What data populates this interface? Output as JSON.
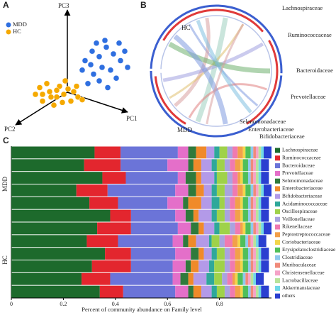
{
  "figure": {
    "panels": [
      "A",
      "B",
      "C"
    ]
  },
  "chart_data": [
    {
      "type": "scatter",
      "x_label": "PC1",
      "y_label": "PC3",
      "z_label": "PC2",
      "xlim": [
        0,
        100
      ],
      "ylim": [
        0,
        100
      ],
      "series": [
        {
          "name": "MDD",
          "color": "#2f6fe0",
          "x": [
            60,
            65,
            70,
            75,
            80,
            85,
            72,
            66,
            78,
            88,
            62,
            70,
            82,
            74,
            68,
            90,
            58,
            76,
            84,
            64
          ],
          "y": [
            55,
            62,
            58,
            65,
            60,
            55,
            50,
            45,
            48,
            62,
            38,
            40,
            42,
            70,
            68,
            50,
            48,
            35,
            68,
            52
          ]
        },
        {
          "name": "HC",
          "color": "#f5a900",
          "x": [
            25,
            30,
            35,
            40,
            45,
            50,
            55,
            33,
            42,
            48,
            28,
            38,
            52,
            58,
            36,
            44,
            30,
            46,
            40,
            54
          ],
          "y": [
            30,
            25,
            32,
            28,
            30,
            25,
            28,
            38,
            36,
            34,
            35,
            22,
            32,
            26,
            28,
            24,
            30,
            40,
            33,
            36
          ]
        }
      ]
    },
    {
      "type": "chord",
      "groups": [
        "HC",
        "MDD"
      ],
      "labels": [
        "Lachnospiraceae",
        "Ruminococcaceae",
        "Bacteroidaceae",
        "Prevotellaceae",
        "Selenomonadaceae",
        "Enterobacteriaceae",
        "Bifidobacteriaceae"
      ]
    },
    {
      "type": "bar",
      "orientation": "horizontal",
      "stacked": true,
      "x_label": "Percent of community abundance on Family level",
      "xlim": [
        0,
        1
      ],
      "xticks": [
        0,
        0.2,
        0.4,
        0.6,
        0.8
      ],
      "groups": [
        "MDD",
        "HC"
      ],
      "categories": [
        null,
        null,
        null,
        null,
        null,
        null,
        null,
        null,
        null,
        null,
        null,
        null
      ],
      "series": [
        {
          "name": "Lachnospiraceae",
          "color": "#1d6a2c",
          "values": [
            0.32,
            0.28,
            0.35,
            0.25,
            0.3,
            0.38,
            0.33,
            0.29,
            0.36,
            0.31,
            0.27,
            0.34
          ]
        },
        {
          "name": "Ruminococcaceae",
          "color": "#e3262e",
          "values": [
            0.1,
            0.14,
            0.09,
            0.12,
            0.11,
            0.08,
            0.13,
            0.12,
            0.1,
            0.15,
            0.11,
            0.09
          ]
        },
        {
          "name": "Bacteroidaceae",
          "color": "#6b74d8",
          "values": [
            0.22,
            0.18,
            0.2,
            0.26,
            0.19,
            0.17,
            0.18,
            0.21,
            0.17,
            0.16,
            0.24,
            0.2
          ]
        },
        {
          "name": "Prevotellaceae",
          "color": "#e46fc9",
          "values": [
            0.04,
            0.08,
            0.03,
            0.05,
            0.06,
            0.04,
            0.05,
            0.04,
            0.06,
            0.05,
            0.03,
            0.05
          ]
        },
        {
          "name": "Selenomonadaceae",
          "color": "#2f7a3c",
          "values": [
            0.03,
            0.02,
            0.04,
            0.03,
            0.02,
            0.03,
            0.03,
            0.02,
            0.03,
            0.02,
            0.03,
            0.02
          ]
        },
        {
          "name": "Enterobacteriaceae",
          "color": "#f08a2a",
          "values": [
            0.04,
            0.03,
            0.02,
            0.03,
            0.05,
            0.02,
            0.02,
            0.03,
            0.02,
            0.03,
            0.02,
            0.03
          ]
        },
        {
          "name": "Bifidobacteriaceae",
          "color": "#b39ae8",
          "values": [
            0.03,
            0.04,
            0.05,
            0.03,
            0.04,
            0.05,
            0.04,
            0.05,
            0.03,
            0.04,
            0.05,
            0.04
          ]
        },
        {
          "name": "Acidaminococcaceae",
          "color": "#2fa89a",
          "values": [
            0.02,
            0.02,
            0.01,
            0.02,
            0.03,
            0.02,
            0.02,
            0.01,
            0.02,
            0.02,
            0.03,
            0.02
          ]
        },
        {
          "name": "Oscillospiraceae",
          "color": "#9fd24a",
          "values": [
            0.03,
            0.03,
            0.04,
            0.03,
            0.02,
            0.03,
            0.04,
            0.03,
            0.03,
            0.04,
            0.03,
            0.03
          ]
        },
        {
          "name": "Veillonellaceae",
          "color": "#a9a3e0",
          "values": [
            0.02,
            0.02,
            0.02,
            0.03,
            0.02,
            0.02,
            0.02,
            0.02,
            0.02,
            0.02,
            0.02,
            0.02
          ]
        },
        {
          "name": "Rikenellaceae",
          "color": "#f07ab0",
          "values": [
            0.02,
            0.02,
            0.02,
            0.02,
            0.02,
            0.02,
            0.02,
            0.03,
            0.02,
            0.02,
            0.02,
            0.02
          ]
        },
        {
          "name": "Peptostreptococcaceae",
          "color": "#f2a04a",
          "values": [
            0.02,
            0.02,
            0.01,
            0.02,
            0.02,
            0.02,
            0.01,
            0.02,
            0.02,
            0.02,
            0.01,
            0.02
          ]
        },
        {
          "name": "Coriobacteriaceae",
          "color": "#f2d64a",
          "values": [
            0.01,
            0.01,
            0.01,
            0.01,
            0.01,
            0.01,
            0.01,
            0.01,
            0.01,
            0.01,
            0.01,
            0.01
          ]
        },
        {
          "name": "Erysipelatoclostridiaceae",
          "color": "#4fbf5a",
          "values": [
            0.02,
            0.02,
            0.02,
            0.02,
            0.02,
            0.02,
            0.02,
            0.02,
            0.02,
            0.02,
            0.02,
            0.02
          ]
        },
        {
          "name": "Clostridiaceae",
          "color": "#8fc8ee",
          "values": [
            0.01,
            0.01,
            0.01,
            0.01,
            0.01,
            0.01,
            0.01,
            0.01,
            0.01,
            0.01,
            0.01,
            0.01
          ]
        },
        {
          "name": "Muribaculaceae",
          "color": "#f08a7a",
          "values": [
            0.01,
            0.01,
            0.01,
            0.01,
            0.01,
            0.01,
            0.01,
            0.01,
            0.01,
            0.01,
            0.01,
            0.01
          ]
        },
        {
          "name": "Christensenellaceae",
          "color": "#f5a3c8",
          "values": [
            0.01,
            0.01,
            0.01,
            0.01,
            0.01,
            0.01,
            0.01,
            0.01,
            0.01,
            0.01,
            0.01,
            0.01
          ]
        },
        {
          "name": "Lactobacillaceae",
          "color": "#b8e39a",
          "values": [
            0.01,
            0.01,
            0.01,
            0.01,
            0.01,
            0.01,
            0.01,
            0.01,
            0.01,
            0.01,
            0.01,
            0.01
          ]
        },
        {
          "name": "Akkermansiaceae",
          "color": "#6fd8e8",
          "values": [
            0.01,
            0.01,
            0.01,
            0.01,
            0.01,
            0.01,
            0.01,
            0.01,
            0.01,
            0.01,
            0.01,
            0.01
          ]
        },
        {
          "name": "others",
          "color": "#2a3fd0",
          "values": [
            0.03,
            0.03,
            0.03,
            0.03,
            0.03,
            0.03,
            0.03,
            0.03,
            0.03,
            0.03,
            0.03,
            0.03
          ]
        }
      ]
    }
  ]
}
